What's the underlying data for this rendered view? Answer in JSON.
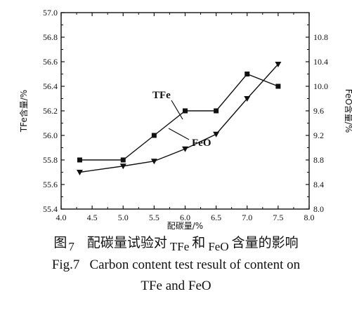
{
  "chart_data": {
    "type": "line",
    "x": [
      4.3,
      5.0,
      5.5,
      6.0,
      6.5,
      7.0,
      7.5
    ],
    "xlabel": "配碳量/%",
    "ylabel": "TFe含量/%",
    "y2label": "FeO含量/%",
    "xlim": [
      4.0,
      8.0
    ],
    "xticks": [
      "4.0",
      "4.5",
      "5.0",
      "5.5",
      "6.0",
      "6.5",
      "7.0",
      "7.5",
      "8.0"
    ],
    "ylim": [
      55.4,
      57.0
    ],
    "yticks": [
      "55.4",
      "55.6",
      "55.8",
      "56.0",
      "56.2",
      "56.4",
      "56.6",
      "56.8",
      "57.0"
    ],
    "y2lim": [
      8.0,
      11.2
    ],
    "y2ticks": [
      "8.0",
      "8.4",
      "8.8",
      "9.2",
      "9.6",
      "10.0",
      "10.4",
      "10.8"
    ],
    "series": [
      {
        "name": "TFe",
        "axis": "left",
        "marker": "square",
        "values": [
          55.8,
          55.8,
          56.0,
          56.2,
          56.2,
          56.5,
          56.4
        ]
      },
      {
        "name": "FeO",
        "axis": "right",
        "marker": "triangle-down",
        "values": [
          8.6,
          8.7,
          8.78,
          8.98,
          9.22,
          9.8,
          10.36
        ]
      }
    ],
    "grid": false
  },
  "caption": {
    "cn_prefix": "图",
    "cn_number": "7",
    "cn_text1": "配碳量试验对",
    "cn_sub1": "TFe",
    "cn_text2": "和",
    "cn_sub2": "FeO",
    "cn_text3": "含量的影响",
    "en_number": "Fig.7",
    "en_line1": "Carbon content test result of content on",
    "en_line2": "TFe and FeO"
  }
}
